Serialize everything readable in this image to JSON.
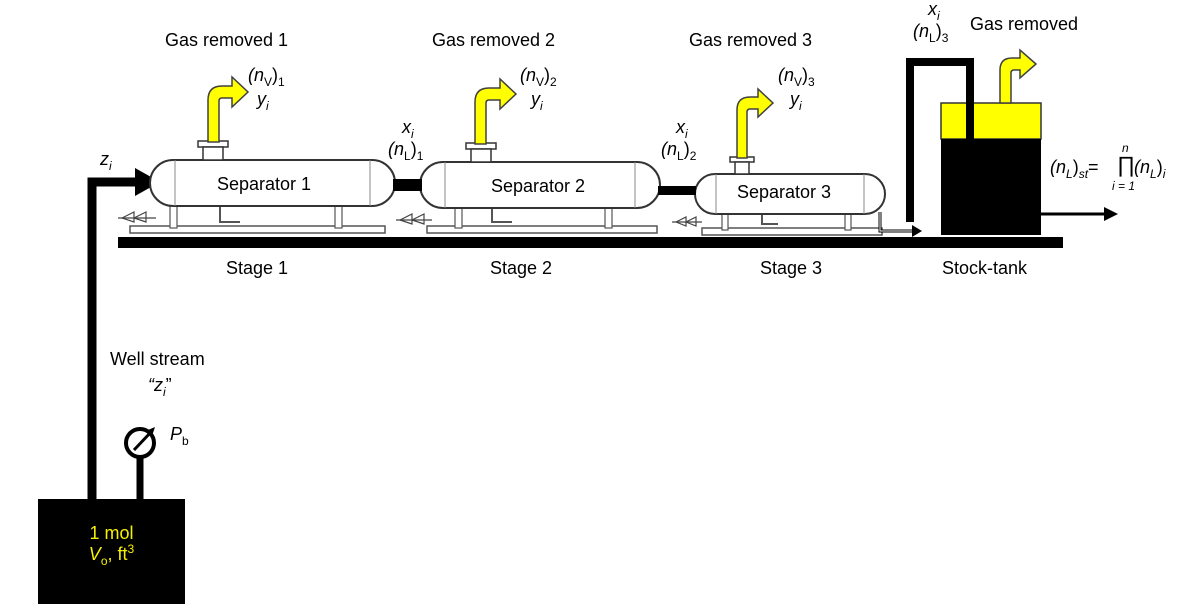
{
  "gas_removed": [
    {
      "label": "Gas removed 1",
      "nv_sym": "(n",
      "nv_sub": "V",
      "nv_close": ")",
      "nv_idx": "1",
      "y": "y",
      "y_sub": "i"
    },
    {
      "label": "Gas removed 2",
      "nv_sym": "(n",
      "nv_sub": "V",
      "nv_close": ")",
      "nv_idx": "2",
      "y": "y",
      "y_sub": "i"
    },
    {
      "label": "Gas removed 3",
      "nv_sym": "(n",
      "nv_sub": "V",
      "nv_close": ")",
      "nv_idx": "3",
      "y": "y",
      "y_sub": "i"
    },
    {
      "label": "Gas removed"
    }
  ],
  "separators": [
    "Separator 1",
    "Separator 2",
    "Separator 3"
  ],
  "stages": [
    "Stage 1",
    "Stage 2",
    "Stage 3",
    "Stock-tank"
  ],
  "liquid_flows": [
    {
      "x": "x",
      "x_sub": "i",
      "nl": "(n",
      "nl_sub": "L",
      "nl_close": ")",
      "idx": "1"
    },
    {
      "x": "x",
      "x_sub": "i",
      "nl": "(n",
      "nl_sub": "L",
      "nl_close": ")",
      "idx": "2"
    },
    {
      "x": "x",
      "x_sub": "i",
      "nl": "(n",
      "nl_sub": "L",
      "nl_close": ")",
      "idx": "3"
    }
  ],
  "feed": {
    "z": "z",
    "z_sub": "i"
  },
  "stock_tank_eq": {
    "lhs": "(n",
    "lhs_sub": "L",
    "lhs_close": ")",
    "lhs_idx": "st",
    "eq": "=",
    "prod": "∏",
    "upper": "n",
    "lower": "i = 1",
    "rhs": "(n",
    "rhs_sub": "L",
    "rhs_close": ")",
    "rhs_idx": "i"
  },
  "well_stream": {
    "label": "Well stream",
    "zi_open": "“z",
    "zi_sub": "i",
    "zi_close": "”"
  },
  "gauge": {
    "sym": "P",
    "sub": "b"
  },
  "well_tank": {
    "line1": "1 mol",
    "v": "V",
    "v_sub": "o",
    "v_rest": ", ft",
    "v_sup": "3"
  },
  "colors": {
    "gas": "#ffff00",
    "gas_outline": "#404040",
    "liquid": "#000000",
    "tank_text": "#f5f000",
    "pipe": "#000000"
  }
}
